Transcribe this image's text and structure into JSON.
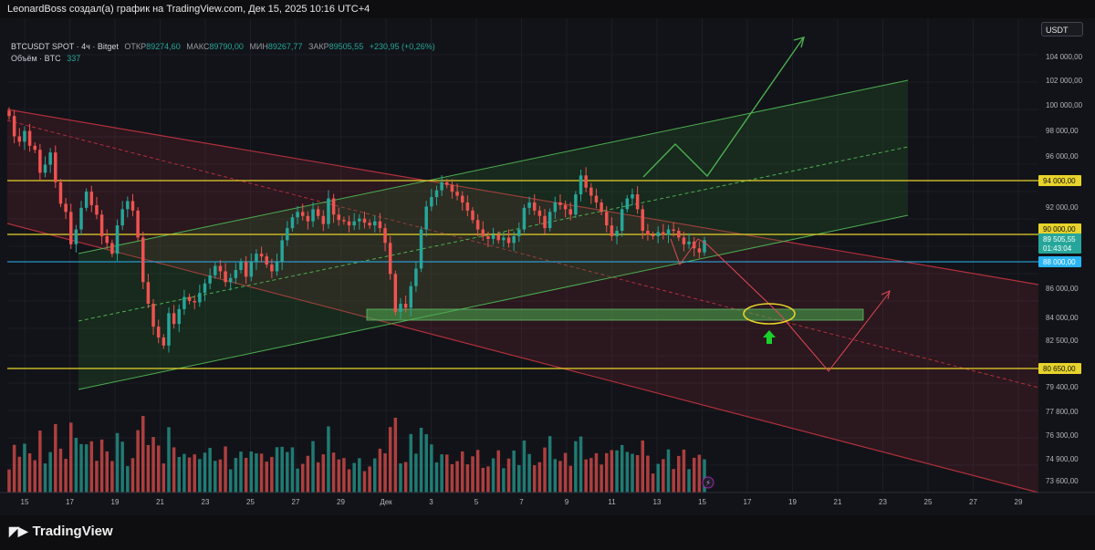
{
  "header": {
    "caption": "LeonardBoss создал(а) график на TradingView.com, Дек 15, 2025 10:16 UTC+4"
  },
  "legend": {
    "symbol": "BTCUSDT SPOT · 4ч · Bitget",
    "open_label": "ОТКР",
    "open_value": "89274,60",
    "high_label": "МАКС",
    "high_value": "89790,00",
    "low_label": "МИН",
    "low_value": "89267,77",
    "close_label": "ЗАКР",
    "close_value": "89505,55",
    "change": "+230,95 (+0,26%)",
    "volume_label": "Объём · BTC",
    "volume_value": "337"
  },
  "currency_button": "USDT",
  "brand": "TradingView",
  "colors": {
    "background": "#121318",
    "bull": "#26a69a",
    "bear": "#ef5350",
    "level_line": "#e7d32b",
    "blue_line": "#29b6f6",
    "channel_red": "#b0303c",
    "channel_green": "#4caf50",
    "zone_green": "#2e7d32",
    "highlight_circle": "#e7d32b",
    "up_arrow": "#19d12a"
  },
  "chart_data": {
    "type": "candlestick",
    "symbol": "BTCUSDT SPOT",
    "exchange": "Bitget",
    "timeframe": "4ч",
    "y_axis_ticks": [
      "104 000,00",
      "102 000,00",
      "100 000,00",
      "98 000,00",
      "96 000,00",
      "92 000,00",
      "86 000,00",
      "84 000,00",
      "82 500,00",
      "79 400,00",
      "77 800,00",
      "76 300,00",
      "74 900,00",
      "73 600,00"
    ],
    "x_axis_ticks": [
      "15",
      "17",
      "19",
      "21",
      "23",
      "25",
      "27",
      "29",
      "Дек",
      "3",
      "5",
      "7",
      "9",
      "11",
      "13",
      "15",
      "17",
      "19",
      "21",
      "23",
      "25",
      "27",
      "29"
    ],
    "price_labels": [
      {
        "text": "94 000,00",
        "color": "#e7d32b"
      },
      {
        "text": "90 000,00",
        "color": "#e7d32b"
      },
      {
        "text": "89 505,55",
        "color": "#26a69a"
      },
      {
        "text": "01:43:04",
        "color": "#26a69a"
      },
      {
        "text": "88 000,00",
        "color": "#29b6f6"
      },
      {
        "text": "80 650,00",
        "color": "#e7d32b"
      }
    ],
    "horizontal_levels": [
      94000,
      90000,
      88000,
      80650
    ],
    "current_price": 89505.55,
    "support_zone": [
      84000,
      84700
    ],
    "ylim": [
      72500,
      106500
    ],
    "closes": [
      98700,
      97200,
      96800,
      97600,
      96500,
      96200,
      94500,
      95100,
      96000,
      93800,
      92200,
      91600,
      89200,
      90300,
      91900,
      93100,
      92100,
      91400,
      89800,
      89300,
      88500,
      90600,
      91800,
      92400,
      91700,
      89700,
      86400,
      84800,
      83100,
      82300,
      81700,
      84100,
      83300,
      84400,
      85300,
      85000,
      84900,
      85600,
      86300,
      86900,
      87600,
      87200,
      86400,
      86700,
      87300,
      87900,
      86800,
      87900,
      88500,
      88300,
      87700,
      87200,
      87900,
      89500,
      90400,
      91200,
      91600,
      91300,
      90900,
      91800,
      91300,
      90700,
      92600,
      91400,
      91000,
      90900,
      90600,
      90900,
      91100,
      90800,
      90600,
      90900,
      90400,
      89300,
      87000,
      84200,
      84800,
      84500,
      86100,
      87400,
      90300,
      92000,
      92700,
      93200,
      93800,
      93600,
      93100,
      92800,
      92300,
      91700,
      91000,
      90300,
      89800,
      89600,
      89900,
      89500,
      89700,
      89300,
      89800,
      90300,
      91900,
      92300,
      91700,
      91300,
      90400,
      91600,
      92300,
      92100,
      91800,
      91400,
      92900,
      94300,
      93400,
      92800,
      92300,
      91600,
      90600,
      89800,
      90200,
      91800,
      92600,
      92900,
      91800,
      90200,
      89900,
      89800,
      90100,
      89900,
      90300,
      90200,
      89700,
      89200,
      89400,
      88900,
      88600,
      89505
    ]
  }
}
